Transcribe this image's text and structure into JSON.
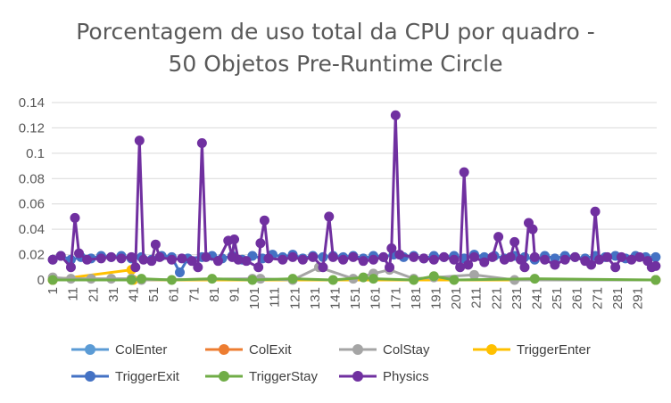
{
  "chart_data": {
    "type": "line",
    "title_line1": "Porcentagem de uso total da CPU por quadro -",
    "title_line2": "50 Objetos Pre-Runtime Circle",
    "ylim": [
      0,
      0.14
    ],
    "y_ticks": [
      "0",
      "0.02",
      "0.04",
      "0.06",
      "0.08",
      "0.1",
      "0.12",
      "0.14"
    ],
    "x_tick_labels": [
      "1",
      "11",
      "21",
      "31",
      "41",
      "51",
      "61",
      "71",
      "81",
      "91",
      "101",
      "111",
      "121",
      "131",
      "141",
      "151",
      "161",
      "171",
      "181",
      "191",
      "201",
      "211",
      "221",
      "231",
      "241",
      "251",
      "261",
      "271",
      "281",
      "291"
    ],
    "frame_count": 300,
    "grid": true,
    "legend_position": "bottom",
    "series": [
      {
        "name": "ColEnter",
        "color": "#5B9BD5",
        "values": [
          [
            1,
            0.0
          ],
          [
            300,
            0.0
          ]
        ]
      },
      {
        "name": "ColExit",
        "color": "#ED7D31",
        "values": [
          [
            1,
            0.0
          ],
          [
            300,
            0.0
          ]
        ]
      },
      {
        "name": "ColStay",
        "color": "#A5A5A5",
        "values": [
          [
            1,
            0.002
          ],
          [
            10,
            0.001
          ],
          [
            20,
            0.001
          ],
          [
            30,
            0.001
          ],
          [
            40,
            0.001
          ],
          [
            45,
            0.0
          ],
          [
            100,
            0.001
          ],
          [
            104,
            0.001
          ],
          [
            120,
            0.0
          ],
          [
            133,
            0.01
          ],
          [
            150,
            0.001
          ],
          [
            160,
            0.005
          ],
          [
            168,
            0.008
          ],
          [
            180,
            0.001
          ],
          [
            190,
            0.002
          ],
          [
            210,
            0.004
          ],
          [
            230,
            0.0
          ],
          [
            300,
            0.0
          ]
        ]
      },
      {
        "name": "TriggerEnter",
        "color": "#FFC000",
        "values": [
          [
            1,
            0.0
          ],
          [
            40,
            0.008
          ],
          [
            41,
            0.0
          ],
          [
            300,
            0.0
          ]
        ]
      },
      {
        "name": "TriggerExit",
        "color": "#4472C4",
        "values": [
          [
            1,
            0.016
          ],
          [
            5,
            0.019
          ],
          [
            10,
            0.016
          ],
          [
            15,
            0.018
          ],
          [
            20,
            0.017
          ],
          [
            25,
            0.019
          ],
          [
            30,
            0.018
          ],
          [
            35,
            0.019
          ],
          [
            40,
            0.017
          ],
          [
            45,
            0.018
          ],
          [
            50,
            0.016
          ],
          [
            55,
            0.019
          ],
          [
            60,
            0.018
          ],
          [
            64,
            0.006
          ],
          [
            68,
            0.017
          ],
          [
            75,
            0.018
          ],
          [
            80,
            0.019
          ],
          [
            85,
            0.017
          ],
          [
            90,
            0.019
          ],
          [
            95,
            0.016
          ],
          [
            100,
            0.019
          ],
          [
            105,
            0.017
          ],
          [
            110,
            0.02
          ],
          [
            115,
            0.018
          ],
          [
            120,
            0.02
          ],
          [
            125,
            0.017
          ],
          [
            130,
            0.019
          ],
          [
            135,
            0.018
          ],
          [
            140,
            0.019
          ],
          [
            145,
            0.018
          ],
          [
            150,
            0.019
          ],
          [
            155,
            0.017
          ],
          [
            160,
            0.019
          ],
          [
            165,
            0.018
          ],
          [
            170,
            0.02
          ],
          [
            175,
            0.018
          ],
          [
            180,
            0.019
          ],
          [
            185,
            0.017
          ],
          [
            190,
            0.019
          ],
          [
            195,
            0.018
          ],
          [
            200,
            0.019
          ],
          [
            205,
            0.017
          ],
          [
            210,
            0.02
          ],
          [
            215,
            0.018
          ],
          [
            220,
            0.019
          ],
          [
            225,
            0.017
          ],
          [
            230,
            0.019
          ],
          [
            235,
            0.018
          ],
          [
            240,
            0.016
          ],
          [
            245,
            0.019
          ],
          [
            250,
            0.017
          ],
          [
            255,
            0.019
          ],
          [
            260,
            0.018
          ],
          [
            265,
            0.017
          ],
          [
            270,
            0.019
          ],
          [
            275,
            0.018
          ],
          [
            280,
            0.019
          ],
          [
            285,
            0.017
          ],
          [
            290,
            0.019
          ],
          [
            295,
            0.018
          ],
          [
            300,
            0.018
          ]
        ]
      },
      {
        "name": "TriggerStay",
        "color": "#70AD47",
        "values": [
          [
            1,
            0.0
          ],
          [
            40,
            0.0
          ],
          [
            45,
            0.001
          ],
          [
            60,
            0.0
          ],
          [
            80,
            0.001
          ],
          [
            100,
            0.0
          ],
          [
            120,
            0.001
          ],
          [
            140,
            0.0
          ],
          [
            155,
            0.002
          ],
          [
            160,
            0.001
          ],
          [
            180,
            0.0
          ],
          [
            190,
            0.003
          ],
          [
            200,
            0.0
          ],
          [
            240,
            0.001
          ],
          [
            300,
            0.0
          ]
        ]
      },
      {
        "name": "Physics",
        "color": "#7030A0",
        "values": [
          [
            1,
            0.016
          ],
          [
            5,
            0.019
          ],
          [
            10,
            0.01
          ],
          [
            12,
            0.049
          ],
          [
            14,
            0.021
          ],
          [
            18,
            0.016
          ],
          [
            25,
            0.017
          ],
          [
            30,
            0.018
          ],
          [
            35,
            0.017
          ],
          [
            40,
            0.018
          ],
          [
            42,
            0.01
          ],
          [
            44,
            0.11
          ],
          [
            46,
            0.016
          ],
          [
            50,
            0.015
          ],
          [
            52,
            0.028
          ],
          [
            54,
            0.018
          ],
          [
            60,
            0.016
          ],
          [
            65,
            0.017
          ],
          [
            70,
            0.015
          ],
          [
            73,
            0.01
          ],
          [
            75,
            0.108
          ],
          [
            77,
            0.018
          ],
          [
            83,
            0.015
          ],
          [
            88,
            0.031
          ],
          [
            90,
            0.018
          ],
          [
            91,
            0.032
          ],
          [
            93,
            0.016
          ],
          [
            97,
            0.015
          ],
          [
            103,
            0.01
          ],
          [
            104,
            0.029
          ],
          [
            106,
            0.047
          ],
          [
            108,
            0.017
          ],
          [
            115,
            0.016
          ],
          [
            120,
            0.018
          ],
          [
            125,
            0.016
          ],
          [
            130,
            0.018
          ],
          [
            135,
            0.01
          ],
          [
            138,
            0.05
          ],
          [
            140,
            0.018
          ],
          [
            145,
            0.016
          ],
          [
            150,
            0.018
          ],
          [
            155,
            0.015
          ],
          [
            160,
            0.016
          ],
          [
            165,
            0.018
          ],
          [
            168,
            0.01
          ],
          [
            169,
            0.025
          ],
          [
            171,
            0.13
          ],
          [
            173,
            0.02
          ],
          [
            180,
            0.018
          ],
          [
            185,
            0.017
          ],
          [
            190,
            0.016
          ],
          [
            195,
            0.018
          ],
          [
            200,
            0.016
          ],
          [
            203,
            0.01
          ],
          [
            205,
            0.085
          ],
          [
            207,
            0.012
          ],
          [
            210,
            0.018
          ],
          [
            215,
            0.014
          ],
          [
            219,
            0.018
          ],
          [
            222,
            0.034
          ],
          [
            225,
            0.016
          ],
          [
            228,
            0.018
          ],
          [
            230,
            0.03
          ],
          [
            233,
            0.016
          ],
          [
            235,
            0.01
          ],
          [
            237,
            0.045
          ],
          [
            239,
            0.04
          ],
          [
            240,
            0.018
          ],
          [
            245,
            0.016
          ],
          [
            250,
            0.012
          ],
          [
            255,
            0.016
          ],
          [
            260,
            0.018
          ],
          [
            265,
            0.015
          ],
          [
            268,
            0.012
          ],
          [
            270,
            0.054
          ],
          [
            272,
            0.016
          ],
          [
            276,
            0.018
          ],
          [
            280,
            0.01
          ],
          [
            283,
            0.018
          ],
          [
            288,
            0.016
          ],
          [
            292,
            0.018
          ],
          [
            296,
            0.015
          ],
          [
            298,
            0.01
          ],
          [
            300,
            0.011
          ]
        ]
      }
    ]
  }
}
